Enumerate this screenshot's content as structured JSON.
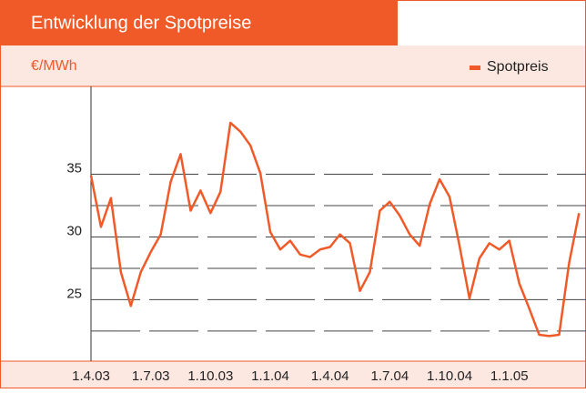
{
  "chart_data": {
    "type": "line",
    "title": "Entwicklung der Spotpreise",
    "y_axis_label": "€/MWh",
    "series": [
      {
        "name": "Spotpreis",
        "color": "#f05a28",
        "values": [
          34.9,
          30.8,
          33.1,
          27.2,
          24.5,
          27.2,
          28.8,
          30.2,
          34.4,
          36.6,
          32.1,
          33.7,
          31.9,
          33.6,
          39.1,
          38.4,
          37.3,
          35.1,
          30.4,
          29.0,
          29.7,
          28.6,
          28.4,
          29.0,
          29.2,
          30.2,
          29.5,
          25.7,
          27.2,
          32.1,
          32.8,
          31.7,
          30.2,
          29.3,
          32.6,
          34.6,
          33.2,
          29.3,
          25.1,
          28.3,
          29.5,
          29.0,
          29.7,
          26.3,
          24.3,
          22.2,
          22.1,
          22.2,
          27.9,
          31.9
        ]
      }
    ],
    "xlim": [
      0,
      49.7
    ],
    "xticks": [
      {
        "value": 0,
        "label": "1.4.03"
      },
      {
        "value": 6,
        "label": "1.7.03"
      },
      {
        "value": 12,
        "label": "1.10.03"
      },
      {
        "value": 18,
        "label": "1.1.04"
      },
      {
        "value": 24,
        "label": "1.4.04"
      },
      {
        "value": 30,
        "label": "1.7.04"
      },
      {
        "value": 36,
        "label": "1.10.04"
      },
      {
        "value": 42,
        "label": "1.1.05"
      }
    ],
    "ylim": [
      20.1,
      42
    ],
    "yticks": [
      25,
      30,
      35
    ],
    "minor_yticks": [
      22.5,
      27.5,
      32.5
    ],
    "grid": true,
    "legend": "top-right"
  }
}
